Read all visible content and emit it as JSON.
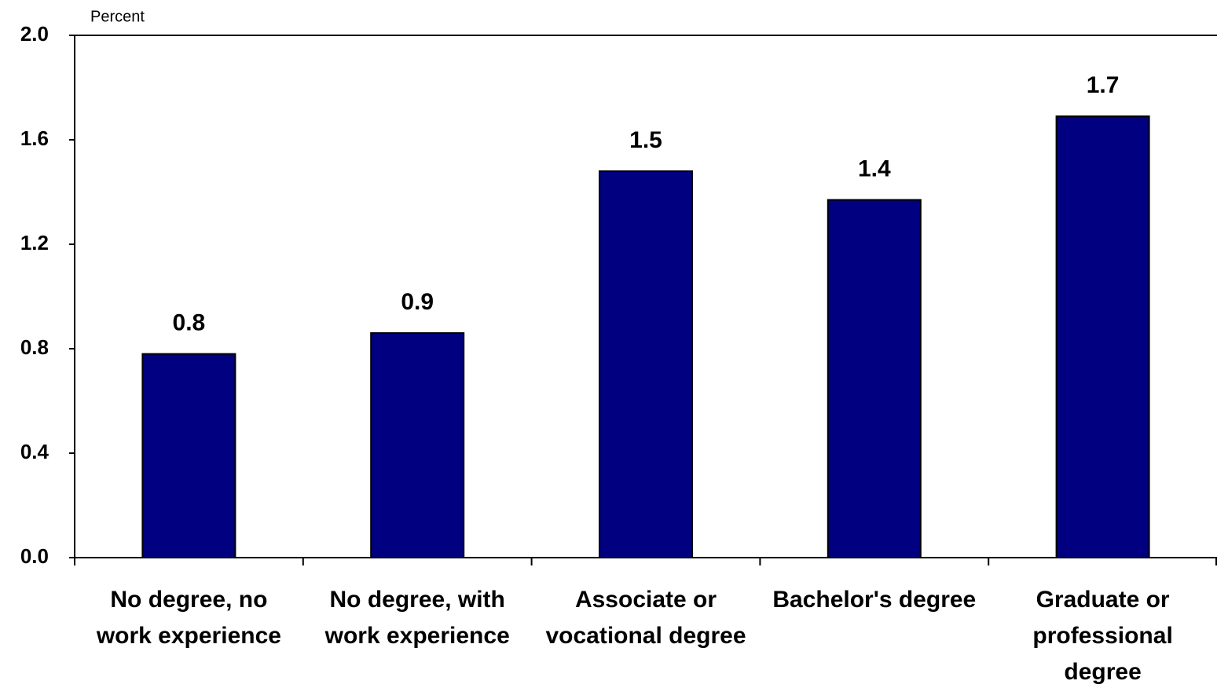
{
  "chart_data": {
    "type": "bar",
    "y_label": "Percent",
    "categories": [
      "No degree, no work experience",
      "No degree, with work experience",
      "Associate or vocational degree",
      "Bachelor's degree",
      "Graduate or professional degree"
    ],
    "values": [
      0.78,
      0.86,
      1.48,
      1.37,
      1.69
    ],
    "value_labels": [
      "0.8",
      "0.9",
      "1.5",
      "1.4",
      "1.7"
    ],
    "color": "#000080",
    "ylim": [
      0,
      2.0
    ],
    "yticks": [
      {
        "value": 0,
        "label": "0.0"
      },
      0.4,
      0.8,
      1.2,
      1.6,
      {
        "value": 2.0,
        "label": "2.0"
      }
    ],
    "grid": false
  }
}
